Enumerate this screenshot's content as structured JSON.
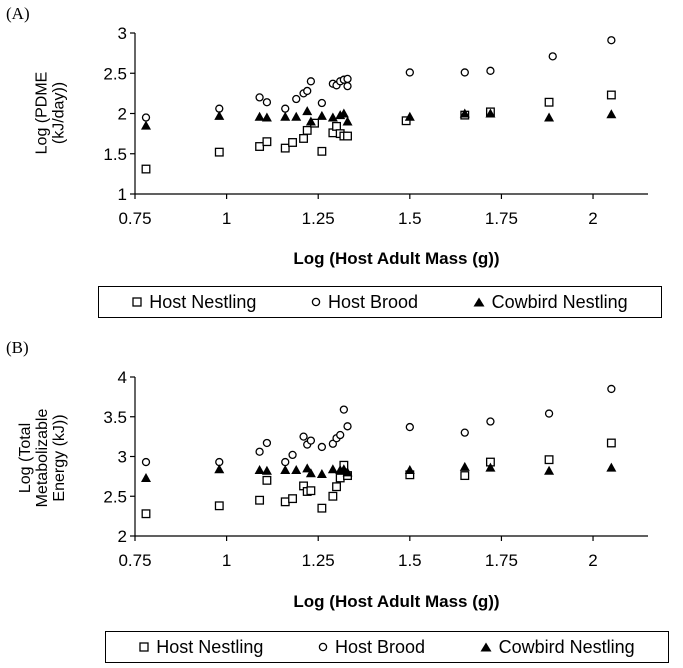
{
  "chart_data": [
    {
      "type": "scatter",
      "panel_label": "(A)",
      "xlabel": "Log (Host Adult Mass (g))",
      "ylabel_lines": [
        "Log (PDME",
        "(kJ/day))"
      ],
      "xlim": [
        0.75,
        2.15
      ],
      "ylim": [
        1,
        3
      ],
      "xticks": [
        "0.75",
        "1",
        "1.25",
        "1.5",
        "1.75",
        "2"
      ],
      "xtick_values": [
        0.75,
        1,
        1.25,
        1.5,
        1.75,
        2
      ],
      "yticks": [
        "1",
        "1.5",
        "2",
        "2.5",
        "3"
      ],
      "ytick_values": [
        1,
        1.5,
        2,
        2.5,
        3
      ],
      "grid": false,
      "legend_position": "bottom",
      "series": [
        {
          "name": "Host Nestling",
          "marker": "open-square",
          "points": [
            [
              0.78,
              1.31
            ],
            [
              0.98,
              1.52
            ],
            [
              1.09,
              1.59
            ],
            [
              1.11,
              1.65
            ],
            [
              1.16,
              1.57
            ],
            [
              1.18,
              1.64
            ],
            [
              1.21,
              1.69
            ],
            [
              1.22,
              1.79
            ],
            [
              1.24,
              1.88
            ],
            [
              1.26,
              1.53
            ],
            [
              1.29,
              1.76
            ],
            [
              1.3,
              1.84
            ],
            [
              1.31,
              1.75
            ],
            [
              1.32,
              1.72
            ],
            [
              1.33,
              1.72
            ],
            [
              1.49,
              1.91
            ],
            [
              1.65,
              1.98
            ],
            [
              1.72,
              2.02
            ],
            [
              1.88,
              2.14
            ],
            [
              2.05,
              2.23
            ]
          ]
        },
        {
          "name": "Host Brood",
          "marker": "open-circle",
          "points": [
            [
              0.78,
              1.95
            ],
            [
              0.98,
              2.06
            ],
            [
              1.09,
              2.2
            ],
            [
              1.11,
              2.14
            ],
            [
              1.16,
              2.06
            ],
            [
              1.19,
              2.18
            ],
            [
              1.21,
              2.25
            ],
            [
              1.22,
              2.28
            ],
            [
              1.23,
              2.4
            ],
            [
              1.26,
              2.13
            ],
            [
              1.29,
              2.37
            ],
            [
              1.3,
              2.35
            ],
            [
              1.31,
              2.4
            ],
            [
              1.32,
              2.42
            ],
            [
              1.33,
              2.34
            ],
            [
              1.33,
              2.43
            ],
            [
              1.5,
              2.51
            ],
            [
              1.65,
              2.51
            ],
            [
              1.72,
              2.53
            ],
            [
              1.89,
              2.71
            ],
            [
              2.05,
              2.91
            ]
          ]
        },
        {
          "name": "Cowbird Nestling",
          "marker": "filled-triangle",
          "points": [
            [
              0.78,
              1.85
            ],
            [
              0.98,
              1.97
            ],
            [
              1.09,
              1.96
            ],
            [
              1.11,
              1.95
            ],
            [
              1.16,
              1.96
            ],
            [
              1.19,
              1.96
            ],
            [
              1.22,
              2.03
            ],
            [
              1.23,
              1.9
            ],
            [
              1.26,
              1.97
            ],
            [
              1.29,
              1.95
            ],
            [
              1.31,
              1.98
            ],
            [
              1.32,
              2.0
            ],
            [
              1.33,
              1.9
            ],
            [
              1.5,
              1.96
            ],
            [
              1.65,
              2.0
            ],
            [
              1.72,
              2.0
            ],
            [
              1.88,
              1.95
            ],
            [
              2.05,
              1.99
            ]
          ]
        }
      ]
    },
    {
      "type": "scatter",
      "panel_label": "(B)",
      "xlabel": "Log (Host Adult Mass (g))",
      "ylabel_lines": [
        "Log (Total",
        "Metabolizable",
        "Energy (kJ))"
      ],
      "xlim": [
        0.75,
        2.15
      ],
      "ylim": [
        2,
        4
      ],
      "xticks": [
        "0.75",
        "1",
        "1.25",
        "1.5",
        "1.75",
        "2"
      ],
      "xtick_values": [
        0.75,
        1,
        1.25,
        1.5,
        1.75,
        2
      ],
      "yticks": [
        "2",
        "2.5",
        "3",
        "3.5",
        "4"
      ],
      "ytick_values": [
        2,
        2.5,
        3,
        3.5,
        4
      ],
      "grid": false,
      "legend_position": "bottom",
      "series": [
        {
          "name": "Host Nestling",
          "marker": "open-square",
          "points": [
            [
              0.78,
              2.28
            ],
            [
              0.98,
              2.38
            ],
            [
              1.09,
              2.45
            ],
            [
              1.11,
              2.7
            ],
            [
              1.16,
              2.43
            ],
            [
              1.18,
              2.47
            ],
            [
              1.21,
              2.63
            ],
            [
              1.22,
              2.56
            ],
            [
              1.23,
              2.57
            ],
            [
              1.26,
              2.35
            ],
            [
              1.29,
              2.5
            ],
            [
              1.3,
              2.62
            ],
            [
              1.31,
              2.73
            ],
            [
              1.32,
              2.89
            ],
            [
              1.33,
              2.76
            ],
            [
              1.5,
              2.77
            ],
            [
              1.65,
              2.76
            ],
            [
              1.72,
              2.93
            ],
            [
              1.88,
              2.96
            ],
            [
              2.05,
              3.17
            ]
          ]
        },
        {
          "name": "Host Brood",
          "marker": "open-circle",
          "points": [
            [
              0.78,
              2.93
            ],
            [
              0.98,
              2.93
            ],
            [
              1.09,
              3.06
            ],
            [
              1.11,
              3.17
            ],
            [
              1.16,
              2.93
            ],
            [
              1.18,
              3.02
            ],
            [
              1.21,
              3.25
            ],
            [
              1.22,
              3.15
            ],
            [
              1.23,
              3.2
            ],
            [
              1.26,
              3.12
            ],
            [
              1.29,
              3.16
            ],
            [
              1.3,
              3.23
            ],
            [
              1.31,
              3.27
            ],
            [
              1.32,
              3.59
            ],
            [
              1.33,
              3.38
            ],
            [
              1.5,
              3.37
            ],
            [
              1.65,
              3.3
            ],
            [
              1.72,
              3.44
            ],
            [
              1.88,
              3.54
            ],
            [
              2.05,
              3.85
            ]
          ]
        },
        {
          "name": "Cowbird Nestling",
          "marker": "filled-triangle",
          "points": [
            [
              0.78,
              2.73
            ],
            [
              0.98,
              2.84
            ],
            [
              1.09,
              2.83
            ],
            [
              1.11,
              2.82
            ],
            [
              1.16,
              2.83
            ],
            [
              1.19,
              2.83
            ],
            [
              1.22,
              2.85
            ],
            [
              1.23,
              2.79
            ],
            [
              1.26,
              2.78
            ],
            [
              1.29,
              2.84
            ],
            [
              1.31,
              2.83
            ],
            [
              1.32,
              2.84
            ],
            [
              1.33,
              2.8
            ],
            [
              1.5,
              2.83
            ],
            [
              1.65,
              2.87
            ],
            [
              1.72,
              2.86
            ],
            [
              1.88,
              2.82
            ],
            [
              2.05,
              2.86
            ]
          ]
        }
      ]
    }
  ]
}
